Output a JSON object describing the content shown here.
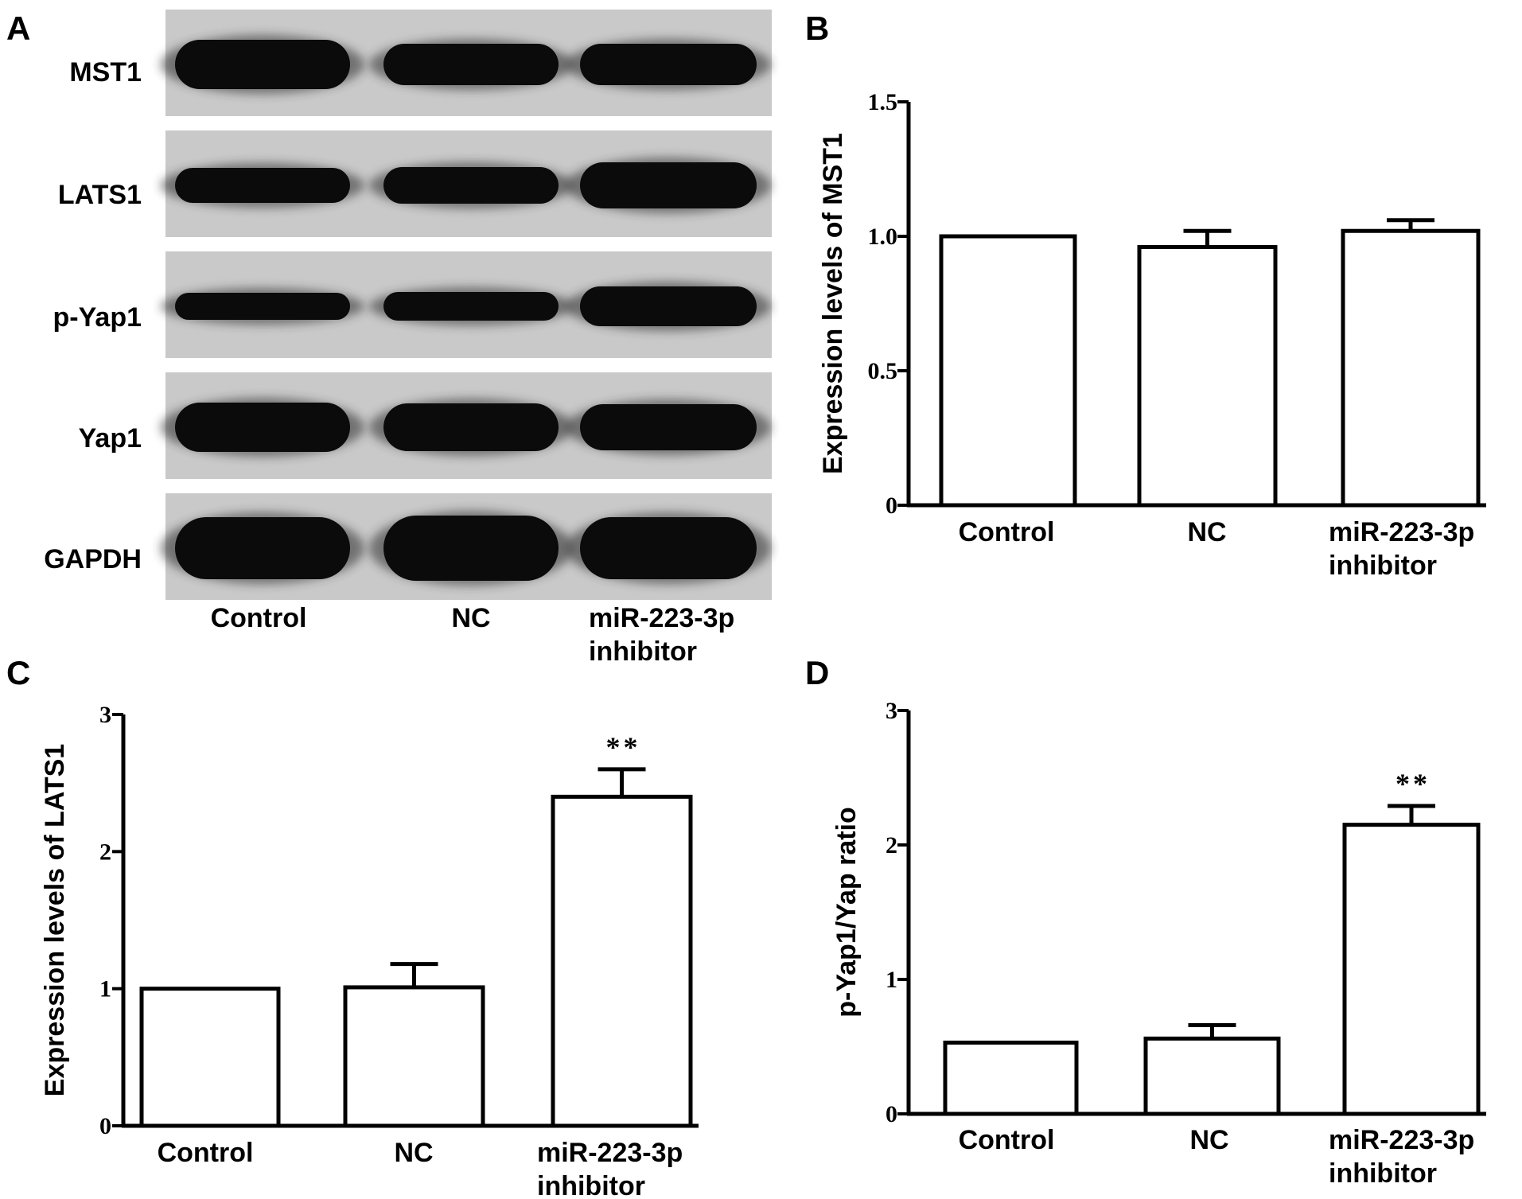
{
  "panels": {
    "A": {
      "letter": "A",
      "blots": [
        "MST1",
        "LATS1",
        "p-Yap1",
        "Yap1",
        "GAPDH"
      ],
      "categories": [
        [
          "Control"
        ],
        [
          "NC"
        ],
        [
          "miR-223-3p",
          "inhibitor"
        ]
      ]
    },
    "B": {
      "letter": "B"
    },
    "C": {
      "letter": "C"
    },
    "D": {
      "letter": "D"
    }
  },
  "chart_data": [
    {
      "panel": "B",
      "type": "bar",
      "categories": [
        [
          "Control"
        ],
        [
          "NC"
        ],
        [
          "miR-223-3p",
          "inhibitor"
        ]
      ],
      "values": [
        1.0,
        0.96,
        1.02
      ],
      "errors": [
        0,
        0.06,
        0.04
      ],
      "ylabel": "Expression levels of MST1",
      "ylim": [
        0,
        1.5
      ],
      "yticks": [
        0,
        0.5,
        1.0,
        1.5
      ],
      "ytick_labels": [
        "0",
        "0.5",
        "1.0",
        "1.5"
      ],
      "significance": [
        "",
        "",
        ""
      ]
    },
    {
      "panel": "C",
      "type": "bar",
      "categories": [
        [
          "Control"
        ],
        [
          "NC"
        ],
        [
          "miR-223-3p",
          "inhibitor"
        ]
      ],
      "values": [
        1.0,
        1.01,
        2.4
      ],
      "errors": [
        0,
        0.17,
        0.2
      ],
      "ylabel": "Expression levels of LATS1",
      "ylim": [
        0,
        3
      ],
      "yticks": [
        0,
        1,
        2,
        3
      ],
      "ytick_labels": [
        "0",
        "1",
        "2",
        "3"
      ],
      "significance": [
        "",
        "",
        "**"
      ]
    },
    {
      "panel": "D",
      "type": "bar",
      "categories": [
        [
          "Control"
        ],
        [
          "NC"
        ],
        [
          "miR-223-3p",
          "inhibitor"
        ]
      ],
      "values": [
        0.53,
        0.56,
        2.15
      ],
      "errors": [
        0,
        0.1,
        0.14
      ],
      "ylabel": "p-Yap1/Yap ratio",
      "ylim": [
        0,
        3
      ],
      "yticks": [
        0,
        1,
        2,
        3
      ],
      "ytick_labels": [
        "0",
        "1",
        "2",
        "3"
      ],
      "significance": [
        "",
        "",
        "**"
      ]
    }
  ]
}
